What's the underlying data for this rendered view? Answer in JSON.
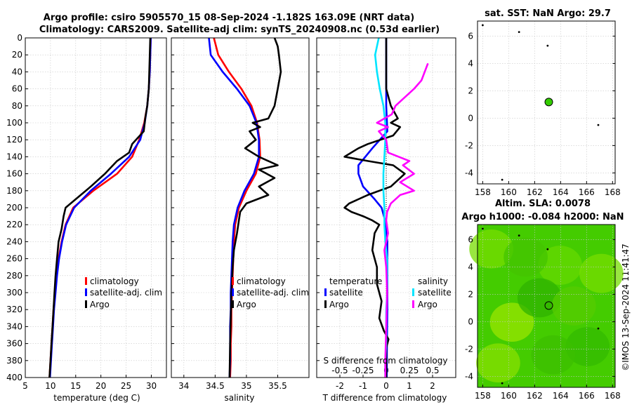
{
  "header": {
    "title_line1": "Argo profile: csiro 5905570_15 08-Sep-2024 -1.182S 163.09E (NRT data)",
    "title_line2": "Climatology: CARS2009. Satellite-adj clim: synTS_20240908.nc (0.53d earlier)"
  },
  "sst_map": {
    "title": "sat. SST: NaN Argo: 29.7"
  },
  "sla_map": {
    "title_line1": "Altim. SLA: 0.0078",
    "title_line2": "Argo h1000: -0.084 h2000: NaN"
  },
  "credit": "©IMOS 13-Sep-2024 11:41:47",
  "colors": {
    "climatology": "#ff0000",
    "satellite": "#0000ff",
    "argo": "#000000",
    "sal_satellite": "#00e5ff",
    "sal_argo": "#ff00ff",
    "map_green": "#33cc00"
  },
  "legend_main": {
    "climatology": "climatology",
    "satellite": "satellite-adj. clim",
    "argo": "Argo"
  },
  "legend_diff": {
    "temperature": "temperature",
    "salinity": "salinity",
    "satellite": "satellite",
    "argo": "Argo"
  },
  "chart_data": [
    {
      "type": "line",
      "id": "temperature",
      "xlabel": "temperature (deg C)",
      "ylabel": "",
      "xlim": [
        5,
        33
      ],
      "ylim": [
        400,
        0
      ],
      "xticks": [
        "5",
        "10",
        "15",
        "20",
        "25",
        "30"
      ],
      "yticks": [
        "0",
        "20",
        "40",
        "60",
        "80",
        "100",
        "120",
        "140",
        "160",
        "180",
        "200",
        "220",
        "240",
        "260",
        "280",
        "300",
        "320",
        "340",
        "360",
        "380",
        "400"
      ],
      "series": [
        {
          "name": "climatology",
          "color": "#ff0000",
          "depth": [
            0,
            20,
            40,
            60,
            80,
            100,
            120,
            140,
            160,
            180,
            200,
            220,
            240,
            260,
            280,
            300,
            320,
            340,
            360,
            380,
            400
          ],
          "values": [
            29.9,
            29.8,
            29.7,
            29.5,
            29.2,
            28.6,
            27.6,
            26.2,
            23.2,
            18.5,
            14.5,
            13.0,
            12.2,
            11.6,
            11.2,
            10.9,
            10.6,
            10.4,
            10.2,
            10.0,
            9.8
          ]
        },
        {
          "name": "satellite-adj. clim",
          "color": "#0000ff",
          "depth": [
            0,
            20,
            40,
            60,
            80,
            100,
            120,
            140,
            160,
            180,
            200,
            220,
            240,
            260,
            280,
            300,
            320,
            340,
            360,
            380,
            400
          ],
          "values": [
            29.9,
            29.8,
            29.7,
            29.5,
            29.2,
            28.7,
            27.8,
            25.6,
            22.0,
            18.0,
            14.7,
            13.1,
            12.3,
            11.7,
            11.3,
            11.0,
            10.7,
            10.5,
            10.3,
            10.1,
            9.9
          ]
        },
        {
          "name": "Argo",
          "color": "#000000",
          "depth": [
            0,
            20,
            40,
            60,
            80,
            95,
            110,
            125,
            135,
            145,
            160,
            175,
            190,
            200,
            210,
            225,
            240,
            260,
            280,
            300,
            320,
            340,
            360,
            380,
            400
          ],
          "values": [
            29.8,
            29.7,
            29.6,
            29.5,
            29.2,
            28.8,
            28.5,
            26.2,
            25.6,
            23.2,
            20.8,
            18.0,
            15.0,
            13.0,
            12.6,
            12.2,
            11.6,
            11.3,
            11.0,
            10.8,
            10.6,
            10.4,
            10.2,
            10.0,
            9.8
          ]
        }
      ]
    },
    {
      "type": "line",
      "id": "salinity",
      "xlabel": "salinity",
      "xlim": [
        33.8,
        36.0
      ],
      "ylim": [
        400,
        0
      ],
      "xticks": [
        "34",
        "34.5",
        "35",
        "35.5"
      ],
      "series": [
        {
          "name": "climatology",
          "color": "#ff0000",
          "depth": [
            0,
            20,
            40,
            60,
            80,
            100,
            120,
            140,
            160,
            180,
            200,
            220,
            240,
            260,
            280,
            300,
            320,
            340,
            360,
            380,
            400
          ],
          "values": [
            34.48,
            34.55,
            34.72,
            34.92,
            35.08,
            35.17,
            35.21,
            35.22,
            35.15,
            35.0,
            34.88,
            34.82,
            34.8,
            34.79,
            34.78,
            34.77,
            34.76,
            34.76,
            34.75,
            34.75,
            34.74
          ]
        },
        {
          "name": "satellite-adj. clim",
          "color": "#0000ff",
          "depth": [
            0,
            20,
            40,
            60,
            80,
            100,
            120,
            140,
            160,
            180,
            200,
            220,
            240,
            260,
            280,
            300,
            320,
            340,
            360,
            380,
            400
          ],
          "values": [
            34.4,
            34.43,
            34.62,
            34.85,
            35.05,
            35.16,
            35.2,
            35.2,
            35.12,
            34.97,
            34.86,
            34.8,
            34.78,
            34.77,
            34.76,
            34.75,
            34.75,
            34.74,
            34.74,
            34.74,
            34.73
          ]
        },
        {
          "name": "Argo",
          "color": "#000000",
          "depth": [
            0,
            10,
            20,
            40,
            60,
            80,
            95,
            100,
            105,
            110,
            120,
            130,
            140,
            150,
            155,
            165,
            175,
            185,
            195,
            205,
            215,
            230,
            250,
            270,
            300,
            330,
            360,
            400
          ],
          "values": [
            35.45,
            35.5,
            35.52,
            35.55,
            35.5,
            35.45,
            35.35,
            35.1,
            35.22,
            35.05,
            35.15,
            34.98,
            35.2,
            35.5,
            35.2,
            35.45,
            35.2,
            35.35,
            35.0,
            34.9,
            34.88,
            34.85,
            34.8,
            34.78,
            34.76,
            34.75,
            34.74,
            34.73
          ]
        }
      ]
    },
    {
      "type": "line",
      "id": "differences",
      "xlabel": "T difference from climatology",
      "xlabel_top": "S difference from climatology",
      "xlim": [
        -3,
        3
      ],
      "ylim": [
        400,
        0
      ],
      "xticks": [
        "-2",
        "-1",
        "0",
        "1",
        "2"
      ],
      "xticks_top": [
        "-0.5",
        "-0.25",
        "0",
        "0.25",
        "0.5"
      ],
      "series": [
        {
          "name": "temperature satellite",
          "color": "#0000ff",
          "depth": [
            0,
            40,
            80,
            110,
            130,
            150,
            160,
            175,
            190,
            200,
            215,
            240,
            280,
            320,
            360,
            400
          ],
          "values": [
            0,
            0,
            0,
            0.05,
            -0.6,
            -1.2,
            -1.2,
            -1.0,
            -0.5,
            -0.2,
            -0.05,
            0.05,
            0.05,
            0.05,
            0.03,
            0.02
          ]
        },
        {
          "name": "temperature Argo",
          "color": "#000000",
          "depth": [
            0,
            60,
            80,
            95,
            100,
            105,
            115,
            125,
            130,
            140,
            145,
            150,
            160,
            175,
            185,
            195,
            200,
            205,
            210,
            215,
            220,
            230,
            250,
            270,
            290,
            310,
            330,
            345,
            355,
            365,
            400
          ],
          "values": [
            0,
            0,
            0.2,
            0.5,
            0.2,
            0.6,
            0.3,
            -0.8,
            -1.2,
            -1.8,
            -0.8,
            0.3,
            0.8,
            0.2,
            -0.8,
            -1.6,
            -1.8,
            -1.5,
            -1.0,
            -0.6,
            -0.3,
            -0.5,
            -0.6,
            -0.4,
            -0.4,
            -0.2,
            -0.3,
            -0.1,
            0.1,
            0,
            0
          ]
        },
        {
          "name": "salinity satellite",
          "color": "#00e5ff",
          "depth": [
            0,
            20,
            40,
            60,
            80,
            100,
            120,
            140,
            160,
            180,
            200,
            220,
            240,
            260,
            280,
            300,
            320,
            340,
            360,
            380,
            400
          ],
          "values": [
            -0.08,
            -0.12,
            -0.1,
            -0.07,
            -0.03,
            -0.01,
            -0.01,
            -0.02,
            -0.03,
            -0.03,
            -0.02,
            -0.02,
            -0.01,
            0.01,
            0.01,
            0.01,
            0.0,
            0.0,
            0.0,
            -0.01,
            -0.01
          ]
        },
        {
          "name": "salinity Argo",
          "color": "#ff00ff",
          "depth": [
            30,
            50,
            60,
            80,
            90,
            100,
            105,
            110,
            120,
            135,
            145,
            150,
            160,
            170,
            180,
            185,
            195,
            205,
            215,
            230,
            250,
            270,
            300,
            340,
            380,
            400
          ],
          "values": [
            0.45,
            0.38,
            0.3,
            0.1,
            0.06,
            -0.1,
            0.02,
            -0.08,
            0.0,
            0.02,
            0.25,
            0.18,
            0.3,
            0.15,
            0.3,
            0.15,
            0.05,
            0.01,
            0.0,
            0.02,
            -0.02,
            0.0,
            0.01,
            0.0,
            -0.01,
            -0.01
          ]
        }
      ]
    },
    {
      "type": "scatter",
      "id": "sst-map",
      "title": "sat. SST: NaN Argo: 29.7",
      "xlim": [
        157.6,
        168.2
      ],
      "ylim": [
        -4.8,
        7.1
      ],
      "xticks": [
        "158",
        "160",
        "162",
        "164",
        "166",
        "168"
      ],
      "yticks": [
        "-4",
        "-2",
        "0",
        "2",
        "4",
        "6"
      ],
      "x": [
        163.09
      ],
      "y": [
        1.182
      ]
    },
    {
      "type": "heatmap",
      "id": "sla-map",
      "title": "Altim. SLA: 0.0078",
      "xlim": [
        157.6,
        168.2
      ],
      "ylim": [
        -4.8,
        7.1
      ],
      "xticks": [
        "158",
        "160",
        "162",
        "164",
        "166",
        "168"
      ],
      "yticks": [
        "-4",
        "-2",
        "0",
        "2",
        "4",
        "6"
      ],
      "x": [
        163.09
      ],
      "y": [
        1.182
      ]
    }
  ]
}
